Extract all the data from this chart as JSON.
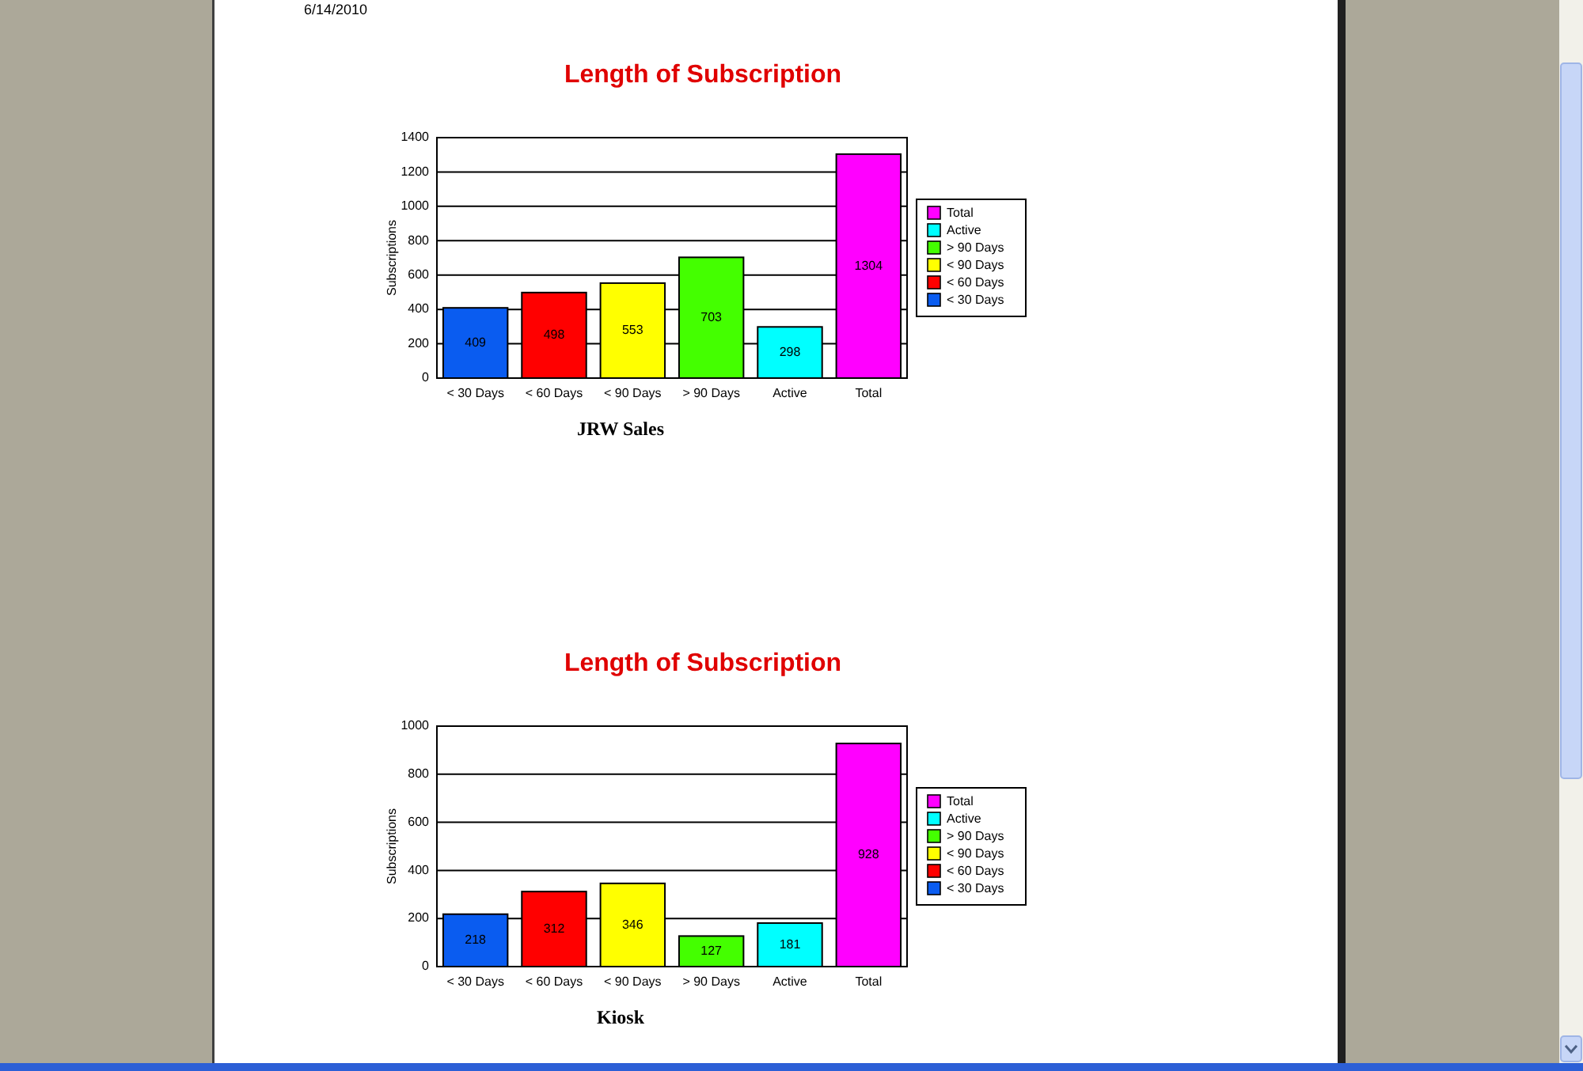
{
  "chart_data": [
    {
      "type": "bar",
      "title": "Length of Subscription",
      "ylabel": "Subscriptions",
      "xlabel": "JRW Sales",
      "annotations": [
        "6/14/2010"
      ],
      "categories": [
        "< 30 Days",
        "< 60 Days",
        "< 90 Days",
        "> 90 Days",
        "Active",
        "Total"
      ],
      "stacked": true,
      "series": [
        {
          "name": "< 30 Days",
          "color": "#0a5cf0",
          "values": [
            409,
            null,
            null,
            null,
            null,
            null
          ]
        },
        {
          "name": "< 60 Days",
          "color": "#ff0000",
          "values": [
            null,
            498,
            null,
            null,
            null,
            null
          ]
        },
        {
          "name": "< 90 Days",
          "color": "#ffff00",
          "values": [
            null,
            null,
            553,
            null,
            null,
            null
          ]
        },
        {
          "name": "> 90 Days",
          "color": "#44ff00",
          "values": [
            null,
            null,
            null,
            703,
            null,
            null
          ]
        },
        {
          "name": "Active",
          "color": "#00ffff",
          "values": [
            null,
            null,
            null,
            null,
            298,
            null
          ]
        },
        {
          "name": "Total",
          "color": "#ff00ff",
          "values": [
            null,
            null,
            null,
            null,
            null,
            1304
          ]
        }
      ],
      "ylim": [
        0,
        1400
      ],
      "yticks": [
        0,
        200,
        400,
        600,
        800,
        1000,
        1200,
        1400
      ],
      "grid": "y",
      "legend": "right",
      "data_labels": true
    },
    {
      "type": "bar",
      "title": "Length of Subscription",
      "ylabel": "Subscriptions",
      "xlabel": "Kiosk",
      "categories": [
        "< 30 Days",
        "< 60 Days",
        "< 90 Days",
        "> 90 Days",
        "Active",
        "Total"
      ],
      "stacked": true,
      "series": [
        {
          "name": "< 30 Days",
          "color": "#0a5cf0",
          "values": [
            218,
            null,
            null,
            null,
            null,
            null
          ]
        },
        {
          "name": "< 60 Days",
          "color": "#ff0000",
          "values": [
            null,
            312,
            null,
            null,
            null,
            null
          ]
        },
        {
          "name": "< 90 Days",
          "color": "#ffff00",
          "values": [
            null,
            null,
            346,
            null,
            null,
            null
          ]
        },
        {
          "name": "> 90 Days",
          "color": "#44ff00",
          "values": [
            null,
            null,
            null,
            127,
            null,
            null
          ]
        },
        {
          "name": "Active",
          "color": "#00ffff",
          "values": [
            null,
            null,
            null,
            null,
            181,
            null
          ]
        },
        {
          "name": "Total",
          "color": "#ff00ff",
          "values": [
            null,
            null,
            null,
            null,
            null,
            928
          ]
        }
      ],
      "ylim": [
        0,
        1000
      ],
      "yticks": [
        0,
        200,
        400,
        600,
        800,
        1000
      ],
      "grid": "y",
      "legend": "right",
      "data_labels": true
    }
  ]
}
